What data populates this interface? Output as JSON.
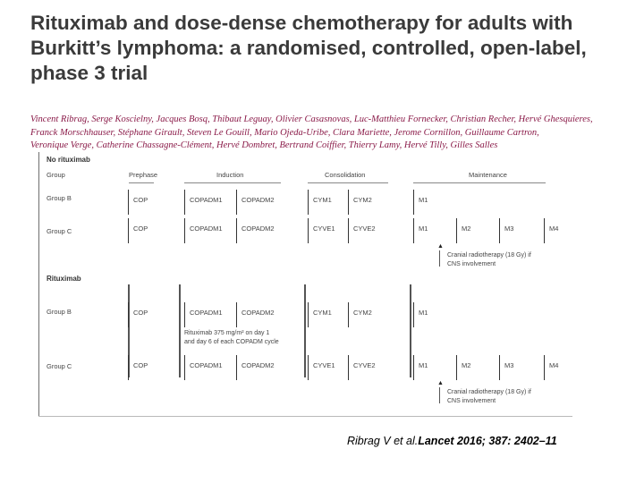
{
  "title_lines": [
    "Rituximab and dose-dense chemotherapy for adults with",
    "Burkitt’s lymphoma: a randomised, controlled, open-label,",
    "phase 3 trial"
  ],
  "author_lines": [
    "Vincent Ribrag, Serge Koscielny, Jacques Bosq, Thibaut Leguay, Olivier Casasnovas, Luc-Matthieu Fornecker, Christian Recher, Hervé Ghesquieres,",
    "Franck Morschhauser, Stéphane Girault, Steven Le Gouill, Mario Ojeda-Uribe, Clara Mariette, Jerome Cornillon, Guillaume Cartron,",
    "Veronique Verge, Catherine Chassagne-Clément, Hervé Dombret, Bertrand Coiffier, Thierry Lamy, Hervé Tilly, Gilles Salles"
  ],
  "figure": {
    "sections": {
      "no_rituximab": "No rituximab",
      "rituximab": "Rituximab"
    },
    "headers": {
      "group": "Group",
      "prephase": "Prephase",
      "induction": "Induction",
      "consolidation": "Consolidation",
      "maintenance": "Maintenance"
    },
    "group_labels": {
      "b": "Group B",
      "c": "Group C"
    },
    "boxes": {
      "cop": "COP",
      "copadm1": "COPADM1",
      "copadm2": "COPADM2",
      "cym1": "CYM1",
      "cym2": "CYM2",
      "cyve1": "CYVE1",
      "cyve2": "CYVE2",
      "m1": "M1",
      "m2": "M2",
      "m3": "M3",
      "m4": "M4"
    },
    "radiotherapy_note": [
      "Cranial radiotherapy (18 Gy) if",
      "CNS involvement"
    ],
    "rituximab_note": [
      "Rituximab 375 mg/m² on day 1",
      "and day 6 of each COPADM cycle"
    ]
  },
  "citation": {
    "authors": "Ribrag V et al.",
    "journal": "Lancet 2016; 387: 2402–11"
  }
}
